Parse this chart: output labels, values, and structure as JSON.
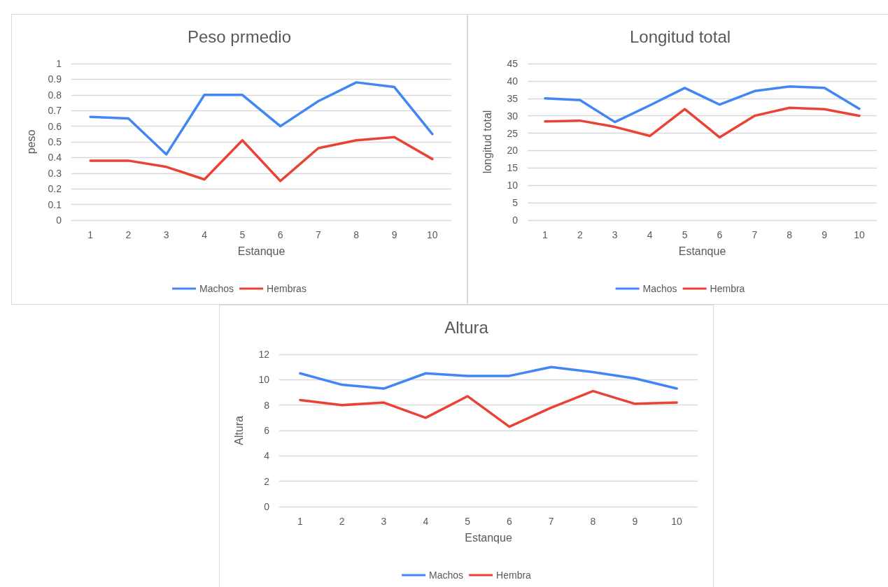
{
  "chart_data": [
    {
      "type": "line",
      "title": "Peso prmedio",
      "xlabel": "Estanque",
      "ylabel": "peso",
      "categories": [
        "1",
        "2",
        "3",
        "4",
        "5",
        "6",
        "7",
        "8",
        "9",
        "10"
      ],
      "ylim": [
        0,
        1
      ],
      "yticks": [
        0,
        0.1,
        0.2,
        0.3,
        0.4,
        0.5,
        0.6,
        0.7,
        0.8,
        0.9,
        1
      ],
      "grid": "y",
      "legend": "bottom",
      "marker": "none",
      "series": [
        {
          "name": "Machos",
          "color": "#4285f4",
          "values": [
            0.66,
            0.65,
            0.42,
            0.8,
            0.8,
            0.6,
            0.76,
            0.88,
            0.85,
            0.55
          ]
        },
        {
          "name": "Hembras",
          "color": "#ea4335",
          "values": [
            0.38,
            0.38,
            0.34,
            0.26,
            0.51,
            0.25,
            0.46,
            0.51,
            0.53,
            0.39
          ]
        }
      ]
    },
    {
      "type": "line",
      "title": "Longitud total",
      "xlabel": "Estanque",
      "ylabel": "longitud total",
      "categories": [
        "1",
        "2",
        "3",
        "4",
        "5",
        "6",
        "7",
        "8",
        "9",
        "10"
      ],
      "ylim": [
        0,
        45
      ],
      "yticks": [
        0,
        5,
        10,
        15,
        20,
        25,
        30,
        35,
        40,
        45
      ],
      "grid": "y",
      "legend": "bottom",
      "marker": "none",
      "series": [
        {
          "name": "Machos",
          "color": "#4285f4",
          "values": [
            35,
            34.5,
            28.2,
            33,
            38,
            33.2,
            37.1,
            38.4,
            38,
            32
          ]
        },
        {
          "name": "Hembra",
          "color": "#ea4335",
          "values": [
            28.4,
            28.6,
            26.8,
            24.2,
            31.9,
            23.8,
            30,
            32.3,
            31.9,
            30
          ]
        }
      ]
    },
    {
      "type": "line",
      "title": "Altura",
      "xlabel": "Estanque",
      "ylabel": "Altura",
      "categories": [
        "1",
        "2",
        "3",
        "4",
        "5",
        "6",
        "7",
        "8",
        "9",
        "10"
      ],
      "ylim": [
        0,
        12
      ],
      "yticks": [
        0,
        2,
        4,
        6,
        8,
        10,
        12
      ],
      "grid": "y",
      "legend": "bottom",
      "marker": "none",
      "series": [
        {
          "name": "Machos",
          "color": "#4285f4",
          "values": [
            10.5,
            9.6,
            9.3,
            10.5,
            10.3,
            10.3,
            11,
            10.6,
            10.1,
            9.3
          ]
        },
        {
          "name": "Hembra",
          "color": "#ea4335",
          "values": [
            8.4,
            8.0,
            8.2,
            7.0,
            8.7,
            6.3,
            7.8,
            9.1,
            8.1,
            8.2
          ]
        }
      ]
    }
  ]
}
